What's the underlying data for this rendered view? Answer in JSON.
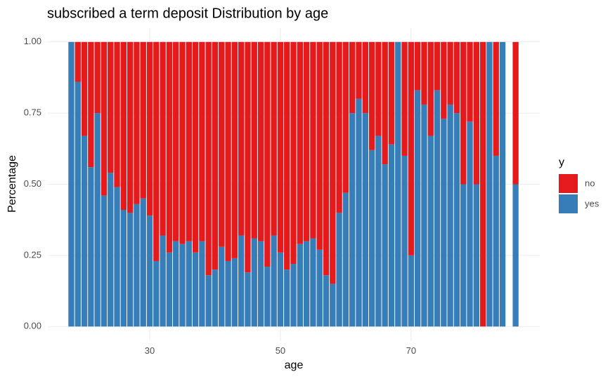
{
  "chart_data": {
    "type": "bar",
    "stacked": true,
    "title": "subscribed a term deposit Distribution by age",
    "x_label": "age",
    "y_label": "Percentage",
    "legend_title": "y",
    "legend": "right",
    "grid": true,
    "x": [
      18,
      19,
      20,
      21,
      22,
      23,
      24,
      25,
      26,
      27,
      28,
      29,
      30,
      31,
      32,
      33,
      34,
      35,
      36,
      37,
      38,
      39,
      40,
      41,
      42,
      43,
      44,
      45,
      46,
      47,
      48,
      49,
      50,
      51,
      52,
      53,
      54,
      55,
      56,
      57,
      58,
      59,
      60,
      61,
      62,
      63,
      64,
      65,
      66,
      67,
      68,
      69,
      70,
      71,
      72,
      73,
      74,
      75,
      76,
      77,
      78,
      79,
      80,
      81,
      82,
      83,
      84,
      86
    ],
    "series": [
      {
        "name": "no",
        "color": "#e41a1c",
        "values": [
          0,
          0.14,
          0.33,
          0.44,
          0.25,
          0.54,
          0.46,
          0.51,
          0.59,
          0.6,
          0.57,
          0.55,
          0.61,
          0.77,
          0.68,
          0.74,
          0.7,
          0.71,
          0.7,
          0.74,
          0.7,
          0.82,
          0.8,
          0.72,
          0.77,
          0.76,
          0.68,
          0.81,
          0.69,
          0.7,
          0.79,
          0.68,
          0.74,
          0.8,
          0.78,
          0.71,
          0.7,
          0.69,
          0.73,
          0.82,
          0.85,
          0.6,
          0.53,
          0.25,
          0.2,
          0.25,
          0.38,
          0.33,
          0.43,
          0.36,
          0,
          0.4,
          0.75,
          0.17,
          0.22,
          0.33,
          0.17,
          0.27,
          0.22,
          0.25,
          0.5,
          0.28,
          0.5,
          1,
          0,
          0.4,
          0,
          0.5
        ]
      },
      {
        "name": "yes",
        "color": "#377eb8",
        "values": [
          1,
          0.86,
          0.67,
          0.56,
          0.75,
          0.46,
          0.54,
          0.49,
          0.41,
          0.4,
          0.43,
          0.45,
          0.39,
          0.23,
          0.32,
          0.26,
          0.3,
          0.29,
          0.3,
          0.26,
          0.3,
          0.18,
          0.2,
          0.28,
          0.23,
          0.24,
          0.32,
          0.19,
          0.31,
          0.3,
          0.21,
          0.32,
          0.26,
          0.2,
          0.22,
          0.29,
          0.3,
          0.31,
          0.27,
          0.18,
          0.15,
          0.4,
          0.47,
          0.75,
          0.8,
          0.75,
          0.62,
          0.67,
          0.57,
          0.64,
          1,
          0.6,
          0.25,
          0.83,
          0.78,
          0.67,
          0.83,
          0.73,
          0.78,
          0.75,
          0.5,
          0.72,
          0.5,
          0,
          1,
          0.6,
          1,
          0.5
        ]
      }
    ],
    "xlim": [
      14.4,
      89.7
    ],
    "xticks": [
      30,
      50,
      70
    ],
    "ylim": [
      -0.05,
      1.05
    ],
    "yticks": [
      {
        "value": 0,
        "label": "0.00"
      },
      0.25,
      {
        "value": 0.5,
        "label": "0.50"
      },
      0.75,
      {
        "value": 1,
        "label": "1.00"
      }
    ]
  }
}
